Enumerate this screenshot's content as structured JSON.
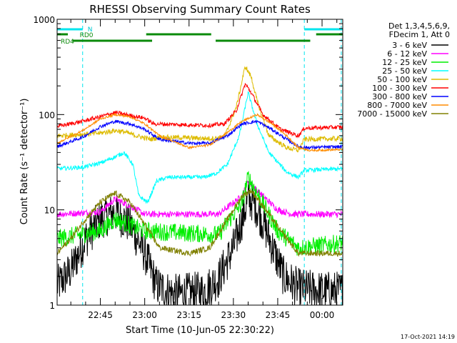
{
  "chart_data": {
    "type": "line",
    "title": "RHESSI Observing Summary Count Rates",
    "xlabel": "Start Time (10-Jun-05 22:30:22)",
    "ylabel": "Count Rate (s⁻¹ detector⁻¹)",
    "y_scale": "log",
    "ylim": [
      1,
      1000
    ],
    "y_ticks": [
      1,
      10,
      100,
      1000
    ],
    "y_tick_labels": [
      "1",
      "10",
      "100",
      "1000"
    ],
    "xlim": [
      "22:30:22",
      "00:07:00"
    ],
    "x_ticks": [
      "22:45",
      "23:00",
      "23:15",
      "23:30",
      "23:45",
      "00:00"
    ],
    "info_lines": [
      "Det 1,3,4,5,6,9,",
      "FDecim 1, Att 0"
    ],
    "timestamp": "17-Oct-2021 14:19",
    "intervals": [
      {
        "name": "N",
        "color": "#00e5ee",
        "segments": [
          [
            "22:30:22",
            "22:39:00"
          ],
          [
            "23:54:00",
            "00:07:00"
          ]
        ]
      },
      {
        "name": "RD0",
        "color": "#0a8a0a",
        "segments": [
          [
            "22:30:22",
            "22:34:00"
          ],
          [
            "23:00:30",
            "23:22:30"
          ],
          [
            "23:58:00",
            "00:07:00"
          ]
        ]
      },
      {
        "name": "RD4",
        "color": "#0a8a0a",
        "segments": [
          [
            "22:35:30",
            "23:02:30"
          ],
          [
            "23:24:00",
            "23:56:00"
          ]
        ]
      }
    ],
    "dashed_lines": [
      "22:39:00",
      "23:54:00",
      "00:06:30"
    ],
    "series": [
      {
        "name": "3 - 6 keV",
        "color": "#000000",
        "noise": 0.5,
        "values": [
          [
            "22:30:22",
            1.6
          ],
          [
            "22:35:00",
            2.3
          ],
          [
            "22:40:00",
            5.0
          ],
          [
            "22:45:00",
            8.0
          ],
          [
            "22:50:00",
            9.5
          ],
          [
            "22:55:00",
            7.0
          ],
          [
            "23:00:00",
            3.5
          ],
          [
            "23:04:00",
            1.6
          ],
          [
            "23:10:00",
            1.3
          ],
          [
            "23:20:00",
            1.4
          ],
          [
            "23:25:00",
            1.9
          ],
          [
            "23:30:00",
            4.0
          ],
          [
            "23:33:00",
            8.0
          ],
          [
            "23:35:00",
            13.0
          ],
          [
            "23:37:00",
            12.0
          ],
          [
            "23:40:00",
            7.5
          ],
          [
            "23:44:00",
            3.5
          ],
          [
            "23:47:00",
            2.0
          ],
          [
            "23:52:00",
            1.5
          ],
          [
            "00:00:00",
            1.4
          ],
          [
            "00:07:00",
            1.4
          ]
        ]
      },
      {
        "name": "6 - 12 keV",
        "color": "#ff00ff",
        "noise": 0.08,
        "values": [
          [
            "22:30:22",
            9.0
          ],
          [
            "22:45:00",
            9.5
          ],
          [
            "22:50:00",
            13.0
          ],
          [
            "22:55:00",
            11.0
          ],
          [
            "23:00:00",
            9.0
          ],
          [
            "23:25:00",
            9.0
          ],
          [
            "23:33:00",
            14.0
          ],
          [
            "23:35:00",
            20.0
          ],
          [
            "23:38:00",
            16.0
          ],
          [
            "23:45:00",
            10.0
          ],
          [
            "23:50:00",
            9.0
          ],
          [
            "00:07:00",
            9.0
          ]
        ]
      },
      {
        "name": "12 - 25 keV",
        "color": "#00ee00",
        "noise": 0.22,
        "values": [
          [
            "22:30:22",
            5.0
          ],
          [
            "22:45:00",
            6.0
          ],
          [
            "22:50:00",
            8.0
          ],
          [
            "23:00:00",
            6.0
          ],
          [
            "23:25:00",
            5.5
          ],
          [
            "23:33:00",
            12.0
          ],
          [
            "23:35:00",
            22.0
          ],
          [
            "23:38:00",
            15.0
          ],
          [
            "23:45:00",
            6.0
          ],
          [
            "23:52:00",
            4.0
          ],
          [
            "00:07:00",
            4.5
          ]
        ]
      },
      {
        "name": "25 - 50 keV",
        "color": "#00ffff",
        "noise": 0.05,
        "values": [
          [
            "22:30:22",
            27.0
          ],
          [
            "22:39:00",
            28.0
          ],
          [
            "22:45:00",
            31.0
          ],
          [
            "22:50:00",
            36.0
          ],
          [
            "22:53:00",
            40.0
          ],
          [
            "22:56:00",
            30.0
          ],
          [
            "22:58:00",
            14.0
          ],
          [
            "23:01:00",
            12.0
          ],
          [
            "23:04:00",
            20.0
          ],
          [
            "23:08:00",
            22.0
          ],
          [
            "23:20:00",
            22.0
          ],
          [
            "23:24:00",
            24.0
          ],
          [
            "23:28:00",
            30.0
          ],
          [
            "23:32:00",
            60.0
          ],
          [
            "23:35:00",
            170.0
          ],
          [
            "23:38:00",
            80.0
          ],
          [
            "23:42:00",
            40.0
          ],
          [
            "23:48:00",
            25.0
          ],
          [
            "23:52:00",
            22.0
          ],
          [
            "23:54:00",
            26.0
          ],
          [
            "00:07:00",
            27.0
          ]
        ]
      },
      {
        "name": "50 - 100 keV",
        "color": "#ddbb00",
        "noise": 0.06,
        "values": [
          [
            "22:30:22",
            60.0
          ],
          [
            "22:39:00",
            62.0
          ],
          [
            "22:45:00",
            64.0
          ],
          [
            "22:50:00",
            68.0
          ],
          [
            "22:53:00",
            66.0
          ],
          [
            "22:57:00",
            60.0
          ],
          [
            "23:02:00",
            55.0
          ],
          [
            "23:05:00",
            58.0
          ],
          [
            "23:15:00",
            57.0
          ],
          [
            "23:22:00",
            56.0
          ],
          [
            "23:27:00",
            58.0
          ],
          [
            "23:31:00",
            120.0
          ],
          [
            "23:34:00",
            320.0
          ],
          [
            "23:36:00",
            250.0
          ],
          [
            "23:38:00",
            140.0
          ],
          [
            "23:42:00",
            60.0
          ],
          [
            "23:48:00",
            45.0
          ],
          [
            "23:52:00",
            42.0
          ],
          [
            "23:54:00",
            55.0
          ],
          [
            "00:07:00",
            56.0
          ]
        ]
      },
      {
        "name": "100 - 300 keV",
        "color": "#ff0000",
        "noise": 0.05,
        "values": [
          [
            "22:30:22",
            75.0
          ],
          [
            "22:39:00",
            85.0
          ],
          [
            "22:45:00",
            95.0
          ],
          [
            "22:50:00",
            105.0
          ],
          [
            "22:55:00",
            98.0
          ],
          [
            "23:00:00",
            92.0
          ],
          [
            "23:03:00",
            80.0
          ],
          [
            "23:15:00",
            78.0
          ],
          [
            "23:22:00",
            77.0
          ],
          [
            "23:27:00",
            80.0
          ],
          [
            "23:31:00",
            110.0
          ],
          [
            "23:34:00",
            210.0
          ],
          [
            "23:36:00",
            170.0
          ],
          [
            "23:40:00",
            100.0
          ],
          [
            "23:46:00",
            70.0
          ],
          [
            "23:52:00",
            60.0
          ],
          [
            "23:54:00",
            72.0
          ],
          [
            "00:07:00",
            74.0
          ]
        ]
      },
      {
        "name": "300 - 800 keV",
        "color": "#0000ff",
        "noise": 0.04,
        "values": [
          [
            "22:30:22",
            46.0
          ],
          [
            "22:39:00",
            58.0
          ],
          [
            "22:45:00",
            75.0
          ],
          [
            "22:50:00",
            85.0
          ],
          [
            "22:55:00",
            80.0
          ],
          [
            "23:00:00",
            70.0
          ],
          [
            "23:05:00",
            55.0
          ],
          [
            "23:15:00",
            50.0
          ],
          [
            "23:22:00",
            50.0
          ],
          [
            "23:28:00",
            60.0
          ],
          [
            "23:33:00",
            80.0
          ],
          [
            "23:38:00",
            85.0
          ],
          [
            "23:43:00",
            70.0
          ],
          [
            "23:48:00",
            55.0
          ],
          [
            "23:52:00",
            46.0
          ],
          [
            "23:55:00",
            45.0
          ],
          [
            "00:07:00",
            46.0
          ]
        ]
      },
      {
        "name": "800 - 7000 keV",
        "color": "#ff8c00",
        "noise": 0.025,
        "values": [
          [
            "22:30:22",
            50.0
          ],
          [
            "22:39:00",
            68.0
          ],
          [
            "22:45:00",
            90.0
          ],
          [
            "22:50:00",
            100.0
          ],
          [
            "22:55:00",
            95.0
          ],
          [
            "23:00:00",
            80.0
          ],
          [
            "23:05:00",
            60.0
          ],
          [
            "23:15:00",
            45.0
          ],
          [
            "23:22:00",
            48.0
          ],
          [
            "23:28:00",
            65.0
          ],
          [
            "23:33:00",
            85.0
          ],
          [
            "23:38:00",
            100.0
          ],
          [
            "23:43:00",
            80.0
          ],
          [
            "23:48:00",
            60.0
          ],
          [
            "23:52:00",
            45.0
          ],
          [
            "23:56:00",
            42.0
          ],
          [
            "00:07:00",
            43.0
          ]
        ]
      },
      {
        "name": "7000 - 15000 keV",
        "color": "#808000",
        "noise": 0.07,
        "values": [
          [
            "22:30:22",
            3.5
          ],
          [
            "22:35:00",
            5.0
          ],
          [
            "22:40:00",
            8.0
          ],
          [
            "22:45:00",
            12.0
          ],
          [
            "22:50:00",
            15.0
          ],
          [
            "22:55:00",
            12.0
          ],
          [
            "23:00:00",
            7.0
          ],
          [
            "23:05:00",
            4.0
          ],
          [
            "23:15:00",
            3.5
          ],
          [
            "23:22:00",
            4.0
          ],
          [
            "23:28:00",
            8.0
          ],
          [
            "23:33:00",
            14.0
          ],
          [
            "23:36:00",
            16.0
          ],
          [
            "23:40:00",
            11.0
          ],
          [
            "23:46:00",
            6.0
          ],
          [
            "23:52:00",
            3.5
          ],
          [
            "00:07:00",
            3.5
          ]
        ]
      }
    ]
  }
}
